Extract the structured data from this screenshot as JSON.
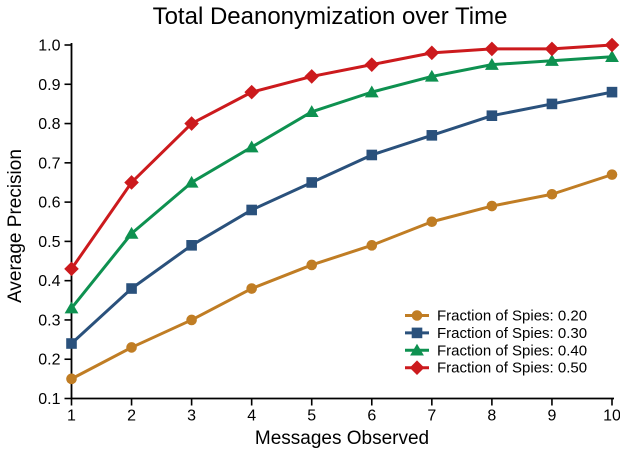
{
  "chart_data": {
    "type": "line",
    "title": "Total Deanonymization over Time",
    "xlabel": "Messages Observed",
    "ylabel": "Average Precision",
    "x": [
      1,
      2,
      3,
      4,
      5,
      6,
      7,
      8,
      9,
      10
    ],
    "xlim": [
      1,
      10
    ],
    "ylim": [
      0.1,
      1.0
    ],
    "xtick_labels": [
      "1",
      "2",
      "3",
      "4",
      "5",
      "6",
      "7",
      "8",
      "9",
      "10"
    ],
    "yticks": [
      0.1,
      0.2,
      0.3,
      0.4,
      0.5,
      0.6,
      0.7,
      0.8,
      0.9,
      1.0
    ],
    "ytick_labels": [
      "0.1",
      "0.2",
      "0.3",
      "0.4",
      "0.5",
      "0.6",
      "0.7",
      "0.8",
      "0.9",
      "1.0"
    ],
    "grid": false,
    "legend_position": "lower right",
    "text_color": "#000000",
    "axis_color": "#000000",
    "series": [
      {
        "name": "Fraction of Spies: 0.20",
        "color": "#C07D24",
        "marker": "circle",
        "values": [
          0.15,
          0.23,
          0.3,
          0.38,
          0.44,
          0.49,
          0.55,
          0.59,
          0.62,
          0.67
        ]
      },
      {
        "name": "Fraction of Spies: 0.30",
        "color": "#2A517C",
        "marker": "square",
        "values": [
          0.24,
          0.38,
          0.49,
          0.58,
          0.65,
          0.72,
          0.77,
          0.82,
          0.85,
          0.88
        ]
      },
      {
        "name": "Fraction of Spies: 0.40",
        "color": "#0E9150",
        "marker": "triangle",
        "values": [
          0.33,
          0.52,
          0.65,
          0.74,
          0.83,
          0.88,
          0.92,
          0.95,
          0.96,
          0.97
        ]
      },
      {
        "name": "Fraction of Spies: 0.50",
        "color": "#CC1A1D",
        "marker": "diamond",
        "values": [
          0.43,
          0.65,
          0.8,
          0.88,
          0.92,
          0.95,
          0.98,
          0.99,
          0.99,
          1.0
        ]
      }
    ]
  }
}
